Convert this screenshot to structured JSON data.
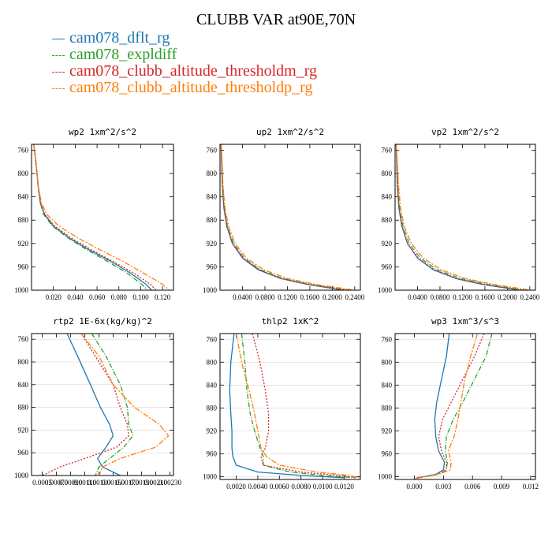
{
  "title": "CLUBB VAR at90E,70N",
  "legend": [
    {
      "name": "cam078_dflt_rg",
      "color": "#1f77b4",
      "dash": ""
    },
    {
      "name": "cam078_expldiff",
      "color": "#2ca02c",
      "dash": "6,2,1,2"
    },
    {
      "name": "cam078_clubb_altitude_thresholdm_rg",
      "color": "#d62728",
      "dash": "2,2"
    },
    {
      "name": "cam078_clubb_altitude_thresholdp_rg",
      "color": "#ff7f0e",
      "dash": "7,2,2,2"
    }
  ],
  "chart_data": [
    {
      "type": "line",
      "title": "wp2  1xm^2/s^2",
      "xlim": [
        0,
        0.13
      ],
      "ylim": [
        1000,
        750
      ],
      "ygrid": false,
      "xticks": [
        0.02,
        0.04,
        0.06,
        0.08,
        0.1,
        0.12
      ],
      "xtick_labels": [
        "0.020",
        "0.040",
        "0.060",
        "0.080",
        "0.100",
        "0.120"
      ],
      "yticks": [
        760,
        800,
        840,
        880,
        920,
        960,
        1000
      ],
      "ytick_labels": [
        "760",
        "800",
        "840",
        "880",
        "920",
        "960",
        "1000"
      ],
      "y": [
        750,
        780,
        820,
        850,
        870,
        890,
        910,
        930,
        950,
        970,
        990,
        1000
      ],
      "series": [
        {
          "name": "cam078_dflt_rg",
          "x": [
            0.002,
            0.004,
            0.006,
            0.008,
            0.012,
            0.02,
            0.034,
            0.052,
            0.072,
            0.09,
            0.105,
            0.11
          ]
        },
        {
          "name": "cam078_expldiff",
          "x": [
            0.002,
            0.004,
            0.006,
            0.008,
            0.011,
            0.019,
            0.033,
            0.05,
            0.069,
            0.087,
            0.101,
            0.106
          ]
        },
        {
          "name": "cam078_clubb_altitude_thresholdm_rg",
          "x": [
            0.002,
            0.004,
            0.006,
            0.008,
            0.012,
            0.021,
            0.036,
            0.054,
            0.074,
            0.093,
            0.109,
            0.114
          ]
        },
        {
          "name": "cam078_clubb_altitude_thresholdp_rg",
          "x": [
            0.002,
            0.004,
            0.006,
            0.009,
            0.014,
            0.025,
            0.042,
            0.062,
            0.083,
            0.102,
            0.12,
            0.126
          ]
        }
      ]
    },
    {
      "type": "line",
      "title": "up2  1xm^2/s^2",
      "xlim": [
        0,
        0.25
      ],
      "ylim": [
        1000,
        750
      ],
      "ygrid": false,
      "xticks": [
        0.04,
        0.08,
        0.12,
        0.16,
        0.2,
        0.24
      ],
      "xtick_labels": [
        "0.0400",
        "0.0800",
        "0.1200",
        "0.1600",
        "0.2000",
        "0.2400"
      ],
      "yticks": [
        760,
        800,
        840,
        880,
        920,
        960,
        1000
      ],
      "ytick_labels": [
        "760",
        "800",
        "840",
        "880",
        "920",
        "960",
        "1000"
      ],
      "y": [
        750,
        780,
        820,
        860,
        890,
        920,
        945,
        965,
        980,
        990,
        1000
      ],
      "series": [
        {
          "name": "cam078_dflt_rg",
          "x": [
            0.002,
            0.003,
            0.004,
            0.007,
            0.012,
            0.022,
            0.04,
            0.068,
            0.108,
            0.155,
            0.22
          ]
        },
        {
          "name": "cam078_expldiff",
          "x": [
            0.002,
            0.003,
            0.005,
            0.008,
            0.013,
            0.024,
            0.043,
            0.072,
            0.112,
            0.16,
            0.225
          ]
        },
        {
          "name": "cam078_clubb_altitude_thresholdm_rg",
          "x": [
            0.002,
            0.003,
            0.004,
            0.007,
            0.012,
            0.022,
            0.041,
            0.07,
            0.11,
            0.158,
            0.228
          ]
        },
        {
          "name": "cam078_clubb_altitude_thresholdp_rg",
          "x": [
            0.002,
            0.004,
            0.005,
            0.009,
            0.015,
            0.027,
            0.047,
            0.078,
            0.12,
            0.17,
            0.24
          ]
        }
      ]
    },
    {
      "type": "line",
      "title": "vp2  1xm^2/s^2",
      "xlim": [
        0,
        0.25
      ],
      "ylim": [
        1000,
        750
      ],
      "ygrid": false,
      "xticks": [
        0.04,
        0.08,
        0.12,
        0.16,
        0.2,
        0.24
      ],
      "xtick_labels": [
        "0.0400",
        "0.0800",
        "0.1200",
        "0.1600",
        "0.2000",
        "0.2400"
      ],
      "yticks": [
        760,
        800,
        840,
        880,
        920,
        960,
        1000
      ],
      "ytick_labels": [
        "760",
        "800",
        "840",
        "880",
        "920",
        "960",
        "1000"
      ],
      "y": [
        750,
        780,
        820,
        860,
        890,
        920,
        945,
        965,
        980,
        990,
        1000
      ],
      "series": [
        {
          "name": "cam078_dflt_rg",
          "x": [
            0.002,
            0.003,
            0.004,
            0.007,
            0.012,
            0.022,
            0.04,
            0.068,
            0.108,
            0.155,
            0.222
          ]
        },
        {
          "name": "cam078_expldiff",
          "x": [
            0.002,
            0.003,
            0.005,
            0.008,
            0.014,
            0.025,
            0.045,
            0.075,
            0.116,
            0.165,
            0.23
          ]
        },
        {
          "name": "cam078_clubb_altitude_thresholdm_rg",
          "x": [
            0.002,
            0.003,
            0.004,
            0.007,
            0.012,
            0.022,
            0.041,
            0.07,
            0.11,
            0.158,
            0.226
          ]
        },
        {
          "name": "cam078_clubb_altitude_thresholdp_rg",
          "x": [
            0.002,
            0.004,
            0.006,
            0.01,
            0.016,
            0.029,
            0.05,
            0.082,
            0.125,
            0.175,
            0.242
          ]
        }
      ]
    },
    {
      "type": "line",
      "title": "rtp2  1E-6x(kg/kg)^2",
      "xlim": [
        0.00035,
        0.00235
      ],
      "ylim": [
        1000,
        750
      ],
      "ygrid": true,
      "xticks": [
        0.0005,
        0.0007,
        0.0009,
        0.0011,
        0.0013,
        0.0015,
        0.0017,
        0.0019,
        0.0021,
        0.0023
      ],
      "xtick_labels": [
        "0.0005",
        "0.00070",
        "0.00090",
        "0.00110",
        "0.00130",
        "0.00150",
        "0.00170",
        "0.00190",
        "0.00210",
        "0.00230"
      ],
      "yticks": [
        760,
        800,
        840,
        880,
        920,
        960,
        1000
      ],
      "ytick_labels": [
        "760",
        "800",
        "840",
        "880",
        "920",
        "960",
        "1000"
      ],
      "series": [
        {
          "name": "cam078_dflt_rg",
          "x": [
            0.00085,
            0.001,
            0.00118,
            0.00132,
            0.00145,
            0.0015,
            0.0014,
            0.00128,
            0.00135,
            0.0016
          ],
          "y": [
            750,
            790,
            840,
            880,
            910,
            930,
            950,
            970,
            985,
            1000
          ]
        },
        {
          "name": "cam078_expldiff",
          "x": [
            0.0012,
            0.0014,
            0.0016,
            0.0017,
            0.00172,
            0.00178,
            0.00165,
            0.00145,
            0.0013,
            0.00125
          ],
          "y": [
            750,
            790,
            840,
            880,
            910,
            930,
            950,
            970,
            985,
            1000
          ]
        },
        {
          "name": "cam078_clubb_altitude_thresholdm_rg",
          "x": [
            0.00105,
            0.00125,
            0.0015,
            0.0016,
            0.0017,
            0.00172,
            0.00155,
            0.0011,
            0.00075,
            0.0005
          ],
          "y": [
            750,
            790,
            840,
            880,
            910,
            930,
            950,
            970,
            985,
            1000
          ]
        },
        {
          "name": "cam078_clubb_altitude_thresholdp_rg",
          "x": [
            0.00105,
            0.0013,
            0.0015,
            0.0018,
            0.00215,
            0.00228,
            0.0021,
            0.0016,
            0.00135,
            0.0013
          ],
          "y": [
            750,
            790,
            840,
            880,
            910,
            930,
            950,
            970,
            985,
            1000
          ]
        }
      ]
    },
    {
      "type": "line",
      "title": "thlp2  1xK^2",
      "xlim": [
        0.0005,
        0.0135
      ],
      "ylim": [
        1005,
        750
      ],
      "ygrid": true,
      "xticks": [
        0.002,
        0.004,
        0.006,
        0.008,
        0.01,
        0.012
      ],
      "xtick_labels": [
        "0.0020",
        "0.0040",
        "0.0060",
        "0.0080",
        "0.0100",
        "0.0120"
      ],
      "yticks": [
        760,
        800,
        840,
        880,
        920,
        960,
        1000
      ],
      "ytick_labels": [
        "760",
        "800",
        "840",
        "880",
        "920",
        "960",
        "1000"
      ],
      "series": [
        {
          "name": "cam078_dflt_rg",
          "x": [
            0.0018,
            0.0015,
            0.0014,
            0.0015,
            0.0016,
            0.0016,
            0.0017,
            0.002,
            0.004,
            0.008,
            0.012
          ],
          "y": [
            750,
            800,
            850,
            890,
            920,
            950,
            965,
            980,
            992,
            998,
            1002
          ]
        },
        {
          "name": "cam078_expldiff",
          "x": [
            0.0025,
            0.0028,
            0.003,
            0.0033,
            0.0037,
            0.0042,
            0.0045,
            0.0045,
            0.007,
            0.01,
            0.013
          ],
          "y": [
            750,
            800,
            850,
            890,
            920,
            950,
            965,
            980,
            992,
            998,
            1002
          ]
        },
        {
          "name": "cam078_clubb_altitude_thresholdm_rg",
          "x": [
            0.0035,
            0.0042,
            0.0047,
            0.005,
            0.005,
            0.0047,
            0.0043,
            0.0045,
            0.008,
            0.0115,
            0.0132
          ],
          "y": [
            750,
            800,
            850,
            890,
            920,
            950,
            965,
            980,
            992,
            998,
            1002
          ]
        },
        {
          "name": "cam078_clubb_altitude_thresholdp_rg",
          "x": [
            0.002,
            0.0025,
            0.0032,
            0.0037,
            0.004,
            0.0043,
            0.0048,
            0.006,
            0.0095,
            0.0125,
            0.0134
          ],
          "y": [
            750,
            800,
            850,
            890,
            920,
            950,
            965,
            980,
            992,
            998,
            1002
          ]
        }
      ]
    },
    {
      "type": "line",
      "title": "wp3  1xm^3/s^3",
      "xlim": [
        -0.002,
        0.0125
      ],
      "ylim": [
        1005,
        750
      ],
      "ygrid": true,
      "xticks": [
        0.0,
        0.003,
        0.006,
        0.009,
        0.012
      ],
      "xtick_labels": [
        "0.000",
        "0.003",
        "0.006",
        "0.009",
        "0.012"
      ],
      "yticks": [
        760,
        800,
        840,
        880,
        920,
        960,
        1000
      ],
      "ytick_labels": [
        "760",
        "800",
        "840",
        "880",
        "920",
        "960",
        "1000"
      ],
      "series": [
        {
          "name": "cam078_dflt_rg",
          "x": [
            0.0036,
            0.0033,
            0.0028,
            0.0023,
            0.0021,
            0.0022,
            0.0025,
            0.0031,
            0.003,
            0.0022,
            0.0001
          ],
          "y": [
            750,
            790,
            830,
            870,
            900,
            930,
            955,
            975,
            988,
            996,
            1003
          ]
        },
        {
          "name": "cam078_expldiff",
          "x": [
            0.008,
            0.0074,
            0.0062,
            0.005,
            0.004,
            0.0033,
            0.0032,
            0.0034,
            0.0033,
            0.0025,
            0.0001
          ],
          "y": [
            750,
            790,
            830,
            870,
            900,
            930,
            955,
            975,
            988,
            996,
            1003
          ]
        },
        {
          "name": "cam078_clubb_altitude_thresholdm_rg",
          "x": [
            0.0072,
            0.0062,
            0.005,
            0.0038,
            0.0029,
            0.0025,
            0.0028,
            0.0033,
            0.0033,
            0.0024,
            0.0001
          ],
          "y": [
            750,
            790,
            830,
            870,
            900,
            930,
            955,
            975,
            988,
            996,
            1003
          ]
        },
        {
          "name": "cam078_clubb_altitude_thresholdp_rg",
          "x": [
            0.0065,
            0.0058,
            0.0052,
            0.0048,
            0.0045,
            0.0041,
            0.0035,
            0.0038,
            0.0037,
            0.0025,
            0.0001
          ],
          "y": [
            750,
            790,
            830,
            870,
            900,
            930,
            955,
            975,
            988,
            996,
            1003
          ]
        }
      ]
    }
  ]
}
